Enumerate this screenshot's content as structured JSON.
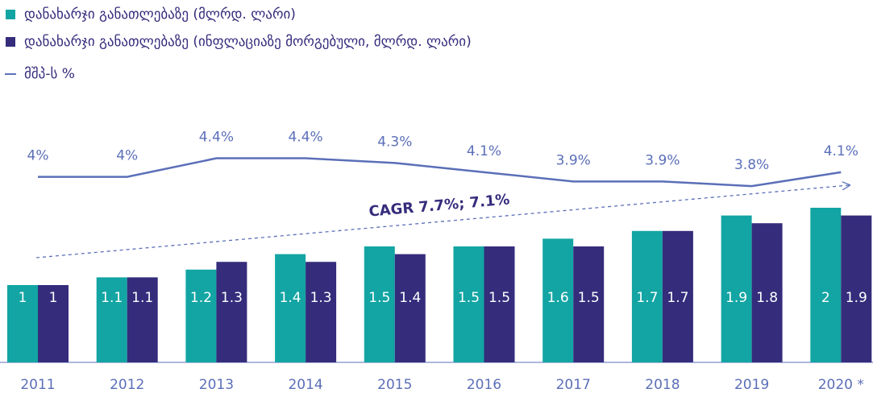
{
  "chart_data": {
    "type": "bar_line",
    "categories": [
      "2011",
      "2012",
      "2013",
      "2014",
      "2015",
      "2016",
      "2017",
      "2018",
      "2019",
      "2020 *"
    ],
    "series": [
      {
        "name": "დანახარჯი განათლებაზე (მლრდ. ლარი)",
        "color": "#12a5a3",
        "values": [
          1,
          1.1,
          1.2,
          1.4,
          1.5,
          1.5,
          1.6,
          1.7,
          1.9,
          2
        ]
      },
      {
        "name": "დანახარჯი განათლებაზე (ინფლაციაზე მორგებული, მლრდ. ლარი)",
        "color": "#352c7c",
        "values": [
          1,
          1.1,
          1.3,
          1.3,
          1.4,
          1.5,
          1.5,
          1.7,
          1.8,
          1.9
        ]
      },
      {
        "name": "მშპ-ს %",
        "color": "#5b6fb8",
        "axis": "y2",
        "values": [
          4,
          4,
          4.4,
          4.4,
          4.3,
          4.1,
          3.9,
          3.9,
          3.8,
          4.1
        ],
        "value_labels": [
          "4%",
          "4%",
          "4.4%",
          "4.4%",
          "4.3%",
          "4.1%",
          "3.9%",
          "3.9%",
          "3.8%",
          "4.1%"
        ]
      }
    ],
    "annotation": "CAGR 7.7%; 7.1%",
    "ylim": [
      0,
      4.5
    ],
    "y2lim": [
      0,
      7.5
    ]
  }
}
